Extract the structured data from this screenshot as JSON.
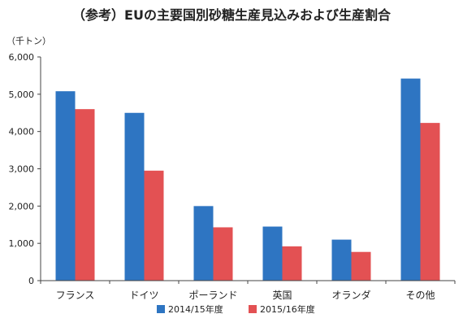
{
  "title": "（参考）EUの主要国別砂糖生産見込みおよび生産割合",
  "colors": {
    "series_2014": "#2e75c2",
    "series_2015": "#e35153",
    "axis": "#444444",
    "grid": "#d9d9d9"
  },
  "chart_data": {
    "type": "bar",
    "title": "（参考）EUの主要国別砂糖生産見込みおよび生産割合",
    "ylabel": "（千トン）",
    "xlabel": "",
    "ylim": [
      0,
      6000
    ],
    "yticks": [
      0,
      1000,
      2000,
      3000,
      4000,
      5000,
      6000
    ],
    "ytick_labels": [
      "0",
      "1,000",
      "2,000",
      "3,000",
      "4,000",
      "5,000",
      "6,000"
    ],
    "categories": [
      "フランス",
      "ドイツ",
      "ポーランド",
      "英国",
      "オランダ",
      "その他"
    ],
    "series": [
      {
        "name": "2014/15年度",
        "values": [
          5080,
          4500,
          2000,
          1450,
          1100,
          5420
        ]
      },
      {
        "name": "2015/16年度",
        "values": [
          4600,
          2950,
          1430,
          920,
          770,
          4230
        ]
      }
    ],
    "grid": false,
    "legend": "bottom"
  }
}
